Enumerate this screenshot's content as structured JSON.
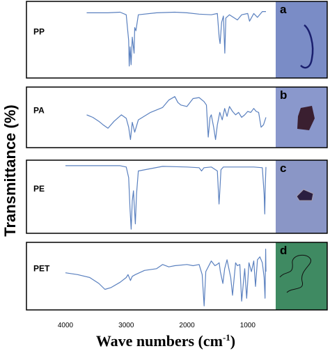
{
  "chart_data": {
    "type": "line",
    "ylabel": "Transmittance (%)",
    "xlabel": "Wave numbers (cm",
    "xlabel_superscript": "-1",
    "xlabel_close": ")",
    "xlim": [
      4000,
      700
    ],
    "xticks": [
      {
        "value": 4000,
        "label": "4000"
      },
      {
        "value": 3000,
        "label": "3000"
      },
      {
        "value": 2000,
        "label": "2000"
      },
      {
        "value": 1000,
        "label": "1000"
      }
    ],
    "colors": {
      "spectrum": "#5a80bf",
      "panel_border": "#000000",
      "pp_photo": "#7a8cc6",
      "pa_photo": "#8a98cc",
      "pe_photo": "#8a96c6",
      "pet_photo": "#3f8a62"
    },
    "panels": [
      {
        "name": "PP",
        "letter": "a",
        "photo": "blue-fiber-micrograph",
        "series": {
          "x": [
            3650,
            3300,
            3100,
            3000,
            2960,
            2950,
            2935,
            2920,
            2900,
            2870,
            2860,
            2840,
            2800,
            2500,
            2200,
            2000,
            1800,
            1600,
            1500,
            1470,
            1455,
            1430,
            1400,
            1377,
            1360,
            1300,
            1170,
            1100,
            1000,
            970,
            900,
            840,
            760,
            700
          ],
          "y": [
            0.93,
            0.93,
            0.94,
            0.9,
            0.5,
            0.1,
            0.4,
            0.12,
            0.55,
            0.3,
            0.7,
            0.65,
            0.9,
            0.93,
            0.94,
            0.93,
            0.91,
            0.9,
            0.92,
            0.55,
            0.45,
            0.78,
            0.88,
            0.3,
            0.85,
            0.9,
            0.82,
            0.9,
            0.92,
            0.8,
            0.92,
            0.86,
            0.95,
            0.95
          ]
        }
      },
      {
        "name": "PA",
        "letter": "b",
        "photo": "fragment-micrograph",
        "series": {
          "x": [
            3650,
            3550,
            3450,
            3380,
            3300,
            3200,
            3080,
            3000,
            2960,
            2930,
            2900,
            2860,
            2800,
            2600,
            2400,
            2300,
            2200,
            2150,
            2100,
            2000,
            1900,
            1800,
            1720,
            1680,
            1650,
            1620,
            1600,
            1560,
            1530,
            1500,
            1460,
            1420,
            1380,
            1340,
            1300,
            1250,
            1200,
            1150,
            1100,
            1050,
            1000,
            950,
            900,
            860,
            820,
            780,
            740,
            700
          ],
          "y": [
            0.55,
            0.5,
            0.42,
            0.35,
            0.28,
            0.42,
            0.55,
            0.48,
            0.3,
            0.05,
            0.4,
            0.2,
            0.45,
            0.6,
            0.7,
            0.85,
            0.92,
            0.8,
            0.75,
            0.72,
            0.88,
            0.9,
            0.82,
            0.75,
            0.1,
            0.5,
            0.55,
            0.3,
            0.05,
            0.35,
            0.6,
            0.45,
            0.68,
            0.52,
            0.72,
            0.62,
            0.55,
            0.6,
            0.5,
            0.55,
            0.62,
            0.6,
            0.68,
            0.62,
            0.6,
            0.3,
            0.35,
            0.5
          ]
        }
      },
      {
        "name": "PE",
        "letter": "c",
        "photo": "dark-fragment-micrograph",
        "series": {
          "x": [
            4000,
            3100,
            3000,
            2960,
            2935,
            2918,
            2900,
            2880,
            2850,
            2830,
            2800,
            2400,
            2000,
            1800,
            1760,
            1720,
            1600,
            1500,
            1472,
            1462,
            1440,
            1400,
            1300,
            1100,
            900,
            760,
            730,
            719,
            710,
            700
          ],
          "y": [
            0.98,
            0.98,
            0.96,
            0.8,
            0.3,
            0.02,
            0.45,
            0.6,
            0.1,
            0.55,
            0.9,
            0.97,
            0.96,
            0.95,
            0.9,
            0.95,
            0.96,
            0.9,
            0.4,
            0.55,
            0.92,
            0.96,
            0.96,
            0.96,
            0.96,
            0.95,
            0.55,
            0.25,
            0.7,
            0.96
          ]
        }
      },
      {
        "name": "PET",
        "letter": "d",
        "photo": "green-fiber-micrograph",
        "series": {
          "x": [
            4000,
            3800,
            3600,
            3450,
            3350,
            3250,
            3100,
            3000,
            2970,
            2930,
            2900,
            2850,
            2700,
            2500,
            2400,
            2300,
            2200,
            2000,
            1900,
            1800,
            1750,
            1717,
            1690,
            1600,
            1540,
            1505,
            1470,
            1450,
            1409,
            1380,
            1340,
            1280,
            1250,
            1200,
            1170,
            1130,
            1100,
            1050,
            1017,
            980,
            940,
            900,
            872,
            840,
            800,
            760,
            730,
            715,
            705,
            700
          ],
          "y": [
            0.58,
            0.55,
            0.5,
            0.4,
            0.3,
            0.33,
            0.42,
            0.5,
            0.55,
            0.45,
            0.52,
            0.55,
            0.62,
            0.65,
            0.72,
            0.68,
            0.7,
            0.72,
            0.7,
            0.72,
            0.55,
            0.02,
            0.6,
            0.78,
            0.7,
            0.72,
            0.75,
            0.6,
            0.4,
            0.65,
            0.8,
            0.5,
            0.2,
            0.75,
            0.7,
            0.72,
            0.1,
            0.65,
            0.15,
            0.75,
            0.6,
            0.78,
            0.35,
            0.8,
            0.85,
            0.75,
            0.5,
            0.15,
            0.98,
            0.6
          ]
        }
      }
    ]
  }
}
